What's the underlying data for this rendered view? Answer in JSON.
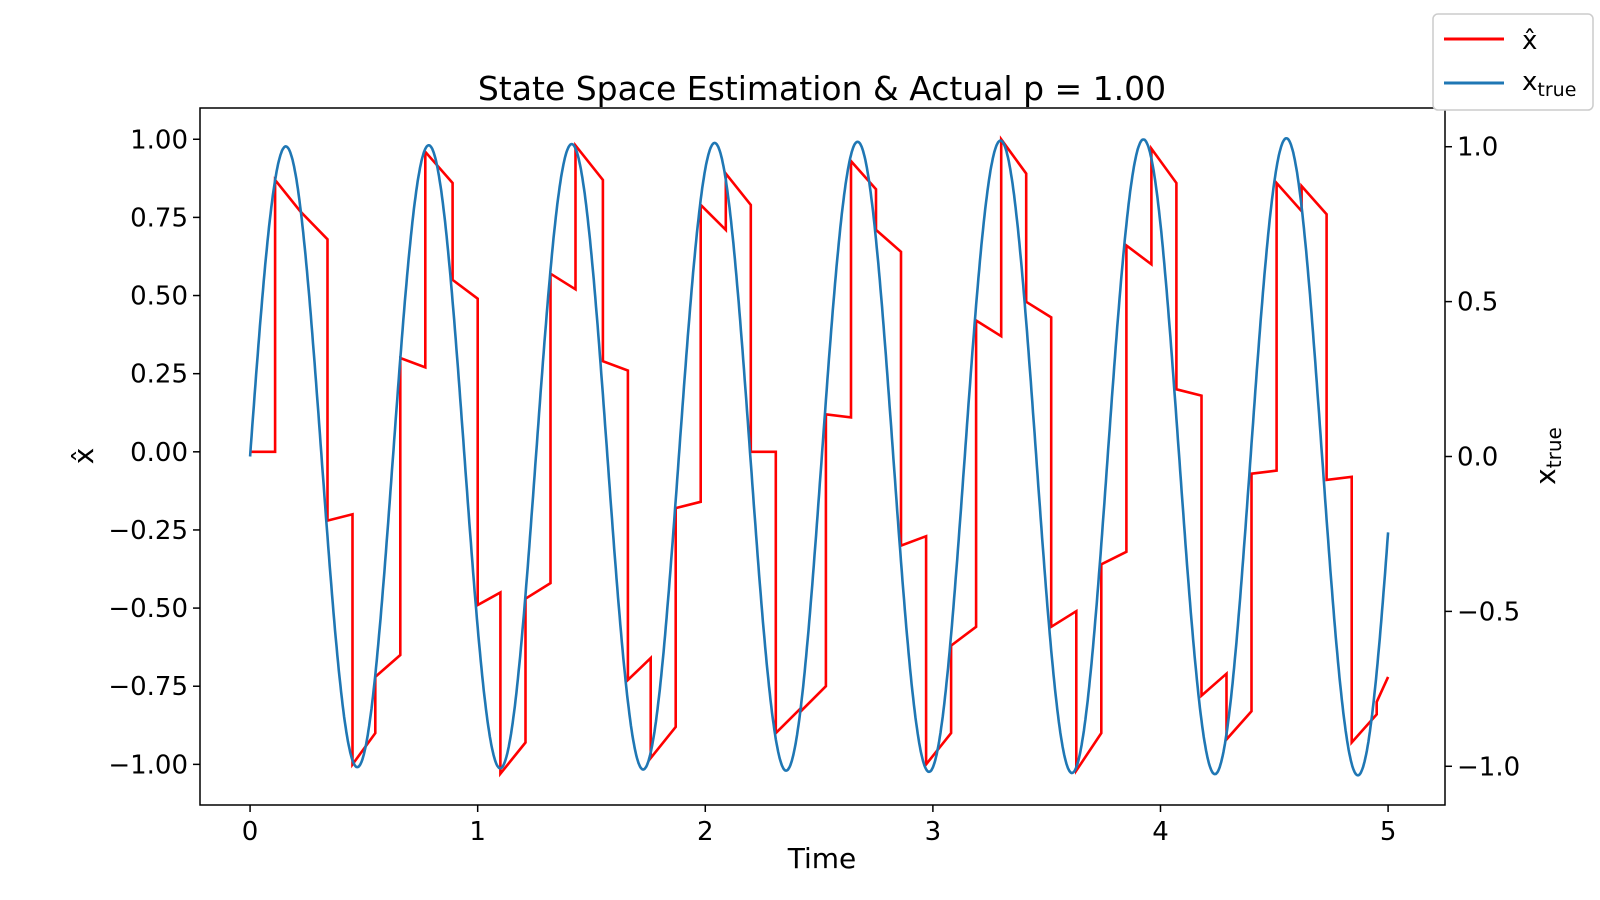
{
  "chart_data": {
    "type": "line",
    "title": "State Space Estimation & Actual p = 1.00",
    "xlabel": "Time",
    "ylabel_left": "x̂",
    "ylabel_right": "x_true",
    "xlim": [
      -0.22,
      5.25
    ],
    "ylim_left": [
      -1.13,
      1.1
    ],
    "ylim_right": [
      -1.125,
      1.125
    ],
    "x_ticks": [
      {
        "value": 0,
        "label": "0"
      },
      {
        "value": 1,
        "label": "1"
      },
      {
        "value": 2,
        "label": "2"
      },
      {
        "value": 3,
        "label": "3"
      },
      {
        "value": 4,
        "label": "4"
      },
      {
        "value": 5,
        "label": "5"
      }
    ],
    "y_ticks_left": [
      {
        "value": 1.0,
        "label": "1.00"
      },
      {
        "value": 0.75,
        "label": "0.75"
      },
      {
        "value": 0.5,
        "label": "0.50"
      },
      {
        "value": 0.25,
        "label": "0.25"
      },
      {
        "value": 0.0,
        "label": "0.00"
      },
      {
        "value": -0.25,
        "label": "−0.25"
      },
      {
        "value": -0.5,
        "label": "−0.50"
      },
      {
        "value": -0.75,
        "label": "−0.75"
      },
      {
        "value": -1.0,
        "label": "−1.00"
      }
    ],
    "y_ticks_right": [
      {
        "value": 1.0,
        "label": "1.0"
      },
      {
        "value": 0.5,
        "label": "0.5"
      },
      {
        "value": 0.0,
        "label": "0.0"
      },
      {
        "value": -0.5,
        "label": "−0.5"
      },
      {
        "value": -1.0,
        "label": "−1.0"
      }
    ],
    "legend_position": "top-right, outside axes",
    "grid": false,
    "series": [
      {
        "name": "x̂",
        "axis": "left",
        "color": "#ff0000",
        "points": [
          [
            0.0,
            0.0
          ],
          [
            0.11,
            0.0
          ],
          [
            0.11,
            0.87
          ],
          [
            0.22,
            0.77
          ],
          [
            0.34,
            0.68
          ],
          [
            0.34,
            -0.22
          ],
          [
            0.45,
            -0.2
          ],
          [
            0.45,
            -1.0
          ],
          [
            0.55,
            -0.9
          ],
          [
            0.55,
            -0.72
          ],
          [
            0.66,
            -0.65
          ],
          [
            0.66,
            0.3
          ],
          [
            0.77,
            0.27
          ],
          [
            0.77,
            0.96
          ],
          [
            0.89,
            0.86
          ],
          [
            0.89,
            0.55
          ],
          [
            1.0,
            0.49
          ],
          [
            1.0,
            -0.49
          ],
          [
            1.1,
            -0.45
          ],
          [
            1.1,
            -1.03
          ],
          [
            1.21,
            -0.93
          ],
          [
            1.21,
            -0.47
          ],
          [
            1.32,
            -0.42
          ],
          [
            1.32,
            0.57
          ],
          [
            1.43,
            0.52
          ],
          [
            1.43,
            0.98
          ],
          [
            1.55,
            0.87
          ],
          [
            1.55,
            0.29
          ],
          [
            1.66,
            0.26
          ],
          [
            1.66,
            -0.73
          ],
          [
            1.76,
            -0.66
          ],
          [
            1.76,
            -0.98
          ],
          [
            1.87,
            -0.88
          ],
          [
            1.87,
            -0.18
          ],
          [
            1.98,
            -0.16
          ],
          [
            1.98,
            0.79
          ],
          [
            2.09,
            0.71
          ],
          [
            2.09,
            0.89
          ],
          [
            2.2,
            0.79
          ],
          [
            2.2,
            0.0
          ],
          [
            2.31,
            0.0
          ],
          [
            2.31,
            -0.9
          ],
          [
            2.42,
            -0.82
          ],
          [
            2.42,
            -0.83
          ],
          [
            2.53,
            -0.75
          ],
          [
            2.53,
            0.12
          ],
          [
            2.64,
            0.11
          ],
          [
            2.64,
            0.93
          ],
          [
            2.75,
            0.84
          ],
          [
            2.75,
            0.71
          ],
          [
            2.86,
            0.64
          ],
          [
            2.86,
            -0.3
          ],
          [
            2.97,
            -0.27
          ],
          [
            2.97,
            -1.0
          ],
          [
            3.08,
            -0.9
          ],
          [
            3.08,
            -0.62
          ],
          [
            3.19,
            -0.56
          ],
          [
            3.19,
            0.42
          ],
          [
            3.3,
            0.37
          ],
          [
            3.3,
            1.0
          ],
          [
            3.41,
            0.89
          ],
          [
            3.41,
            0.48
          ],
          [
            3.52,
            0.43
          ],
          [
            3.52,
            -0.56
          ],
          [
            3.63,
            -0.51
          ],
          [
            3.63,
            -1.02
          ],
          [
            3.74,
            -0.9
          ],
          [
            3.74,
            -0.36
          ],
          [
            3.85,
            -0.32
          ],
          [
            3.85,
            0.66
          ],
          [
            3.96,
            0.6
          ],
          [
            3.96,
            0.97
          ],
          [
            4.07,
            0.86
          ],
          [
            4.07,
            0.2
          ],
          [
            4.18,
            0.18
          ],
          [
            4.18,
            -0.78
          ],
          [
            4.29,
            -0.71
          ],
          [
            4.29,
            -0.92
          ],
          [
            4.4,
            -0.83
          ],
          [
            4.4,
            -0.07
          ],
          [
            4.51,
            -0.06
          ],
          [
            4.51,
            0.86
          ],
          [
            4.62,
            0.77
          ],
          [
            4.62,
            0.85
          ],
          [
            4.73,
            0.76
          ],
          [
            4.73,
            -0.09
          ],
          [
            4.84,
            -0.08
          ],
          [
            4.84,
            -0.93
          ],
          [
            4.95,
            -0.84
          ],
          [
            4.95,
            -0.8
          ],
          [
            5.0,
            -0.72
          ]
        ]
      },
      {
        "name": "x_true",
        "axis": "right",
        "color": "#1f77b4",
        "model": "sine",
        "sine_period": 0.628,
        "sine_amplitude_start": 1.0,
        "sine_amplitude_end": 1.03,
        "x_start": 0.0,
        "x_end": 5.0
      }
    ]
  }
}
